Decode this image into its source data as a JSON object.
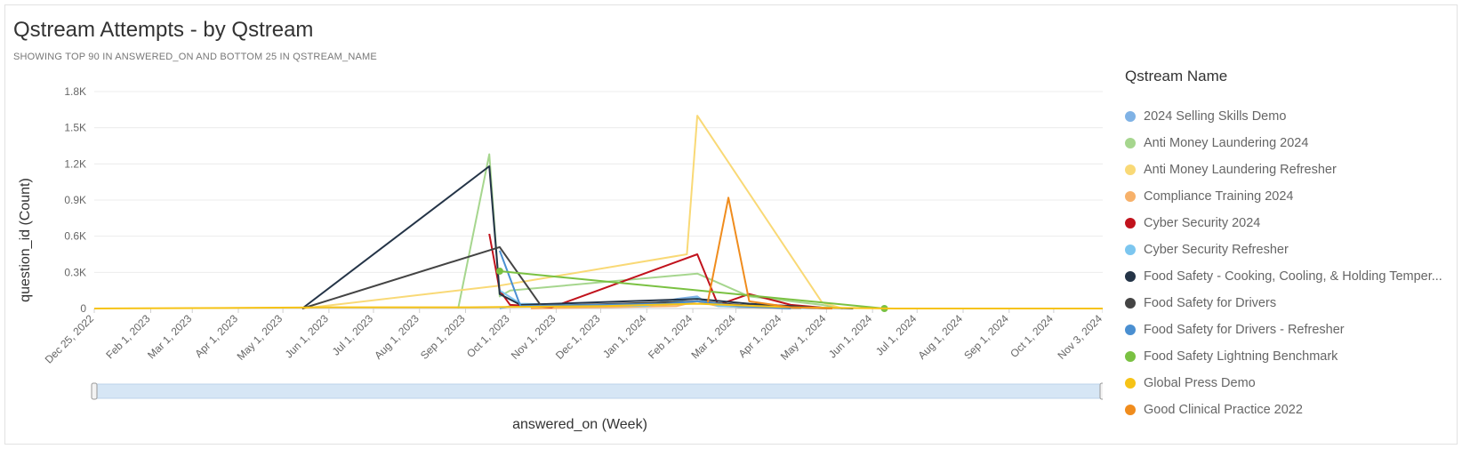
{
  "title": "Qstream Attempts - by Qstream",
  "subtitle": "SHOWING TOP 90 IN ANSWERED_ON AND BOTTOM 25 IN QSTREAM_NAME",
  "legend": {
    "title": "Qstream Name",
    "placement": "right"
  },
  "chart_data": {
    "type": "line",
    "title": "Qstream Attempts - by Qstream",
    "xlabel": "answered_on (Week)",
    "ylabel": "question_id (Count)",
    "ylim": [
      0,
      1800
    ],
    "y_ticks": [
      0,
      300,
      600,
      900,
      1200,
      1500,
      1800
    ],
    "y_tick_labels": [
      "0",
      "0.3K",
      "0.6K",
      "0.9K",
      "1.2K",
      "1.5K",
      "1.8K"
    ],
    "xlim": [
      "2022-12-25",
      "2024-11-03"
    ],
    "x_ticks": [
      "2022-12-25",
      "2023-02-01",
      "2023-03-01",
      "2023-04-01",
      "2023-05-01",
      "2023-06-01",
      "2023-07-01",
      "2023-08-01",
      "2023-09-01",
      "2023-10-01",
      "2023-11-01",
      "2023-12-01",
      "2024-01-01",
      "2024-02-01",
      "2024-03-01",
      "2024-04-01",
      "2024-05-01",
      "2024-06-01",
      "2024-07-01",
      "2024-08-01",
      "2024-09-01",
      "2024-10-01",
      "2024-11-03"
    ],
    "x_tick_labels": [
      "Dec 25, 2022",
      "Feb 1, 2023",
      "Mar 1, 2023",
      "Apr 1, 2023",
      "May 1, 2023",
      "Jun 1, 2023",
      "Jul 1, 2023",
      "Aug 1, 2023",
      "Sep 1, 2023",
      "Oct 1, 2023",
      "Nov 1, 2023",
      "Dec 1, 2023",
      "Jan 1, 2024",
      "Feb 1, 2024",
      "Mar 1, 2024",
      "Apr 1, 2024",
      "May 1, 2024",
      "Jun 1, 2024",
      "Jul 1, 2024",
      "Aug 1, 2024",
      "Sep 1, 2024",
      "Oct 1, 2024",
      "Nov 3, 2024"
    ],
    "grid": true,
    "series": [
      {
        "name": "2024 Selling Skills Demo",
        "color": "#7fb2e5",
        "points": [
          [
            "2023-09-24",
            0
          ],
          [
            "2023-10-01",
            20
          ],
          [
            "2023-12-31",
            30
          ],
          [
            "2024-01-21",
            80
          ],
          [
            "2024-02-04",
            100
          ],
          [
            "2024-02-11",
            40
          ],
          [
            "2024-03-03",
            10
          ],
          [
            "2024-04-07",
            0
          ]
        ]
      },
      {
        "name": "Anti Money Laundering 2024",
        "color": "#a6d68e",
        "points": [
          [
            "2023-08-27",
            0
          ],
          [
            "2023-09-17",
            1280
          ],
          [
            "2023-09-24",
            100
          ],
          [
            "2023-10-01",
            150
          ],
          [
            "2024-02-04",
            290
          ],
          [
            "2024-03-10",
            100
          ],
          [
            "2024-04-28",
            30
          ],
          [
            "2024-05-12",
            0
          ]
        ]
      },
      {
        "name": "Anti Money Laundering Refresher",
        "color": "#f9d976",
        "points": [
          [
            "2023-05-14",
            0
          ],
          [
            "2023-09-24",
            190
          ],
          [
            "2024-01-28",
            450
          ],
          [
            "2024-02-04",
            1600
          ],
          [
            "2024-04-28",
            50
          ],
          [
            "2024-05-12",
            0
          ]
        ]
      },
      {
        "name": "Compliance Training 2024",
        "color": "#f7b16a",
        "points": [
          [
            "2023-10-15",
            0
          ],
          [
            "2024-01-21",
            20
          ],
          [
            "2024-02-04",
            60
          ],
          [
            "2024-02-18",
            20
          ],
          [
            "2024-03-17",
            5
          ],
          [
            "2024-04-14",
            0
          ]
        ]
      },
      {
        "name": "Cyber Security 2024",
        "color": "#c1121c",
        "points": [
          [
            "2023-09-17",
            620
          ],
          [
            "2023-09-24",
            150
          ],
          [
            "2023-10-01",
            30
          ],
          [
            "2023-10-29",
            10
          ],
          [
            "2024-02-04",
            450
          ],
          [
            "2024-02-18",
            30
          ],
          [
            "2024-03-10",
            120
          ],
          [
            "2024-04-07",
            30
          ],
          [
            "2024-05-05",
            0
          ]
        ]
      },
      {
        "name": "Cyber Security Refresher",
        "color": "#7cc6ef",
        "points": [
          [
            "2023-09-24",
            150
          ],
          [
            "2023-10-08",
            40
          ],
          [
            "2023-12-31",
            20
          ],
          [
            "2024-02-04",
            90
          ],
          [
            "2024-02-18",
            20
          ],
          [
            "2024-03-17",
            10
          ],
          [
            "2024-05-05",
            0
          ]
        ]
      },
      {
        "name": "Food Safety - Cooking, Cooling, & Holding Temper...",
        "color": "#243447",
        "points": [
          [
            "2023-05-14",
            0
          ],
          [
            "2023-09-17",
            1180
          ],
          [
            "2023-09-24",
            120
          ],
          [
            "2023-10-08",
            30
          ],
          [
            "2024-02-04",
            80
          ],
          [
            "2024-03-10",
            40
          ],
          [
            "2024-04-21",
            10
          ],
          [
            "2024-05-19",
            0
          ]
        ]
      },
      {
        "name": "Food Safety for Drivers",
        "color": "#444444",
        "points": [
          [
            "2023-05-14",
            0
          ],
          [
            "2023-09-24",
            510
          ],
          [
            "2023-10-22",
            20
          ],
          [
            "2024-02-04",
            60
          ],
          [
            "2024-03-03",
            30
          ],
          [
            "2024-04-07",
            10
          ],
          [
            "2024-05-05",
            0
          ]
        ]
      },
      {
        "name": "Food Safety for Drivers - Refresher",
        "color": "#4a8fd1",
        "points": [
          [
            "2023-09-24",
            480
          ],
          [
            "2023-10-08",
            20
          ],
          [
            "2024-01-14",
            40
          ],
          [
            "2024-02-04",
            60
          ],
          [
            "2024-03-03",
            20
          ],
          [
            "2024-04-07",
            0
          ]
        ]
      },
      {
        "name": "Food Safety Lightning Benchmark",
        "color": "#7ac142",
        "points": [
          [
            "2023-09-24",
            310
          ],
          [
            "2024-06-09",
            0
          ]
        ]
      },
      {
        "name": "Global Press Demo",
        "color": "#f6c316",
        "points": [
          [
            "2022-12-25",
            0
          ],
          [
            "2023-04-02",
            5
          ],
          [
            "2023-06-04",
            10
          ],
          [
            "2023-09-03",
            10
          ],
          [
            "2023-12-03",
            20
          ],
          [
            "2024-02-04",
            40
          ],
          [
            "2024-04-07",
            10
          ],
          [
            "2024-06-16",
            0
          ],
          [
            "2024-09-01",
            0
          ],
          [
            "2024-11-03",
            0
          ]
        ]
      },
      {
        "name": "Good Clinical Practice 2022",
        "color": "#f08c1d",
        "points": [
          [
            "2024-02-11",
            50
          ],
          [
            "2024-02-25",
            920
          ],
          [
            "2024-03-10",
            60
          ],
          [
            "2024-04-07",
            10
          ],
          [
            "2024-05-05",
            0
          ]
        ]
      }
    ]
  }
}
